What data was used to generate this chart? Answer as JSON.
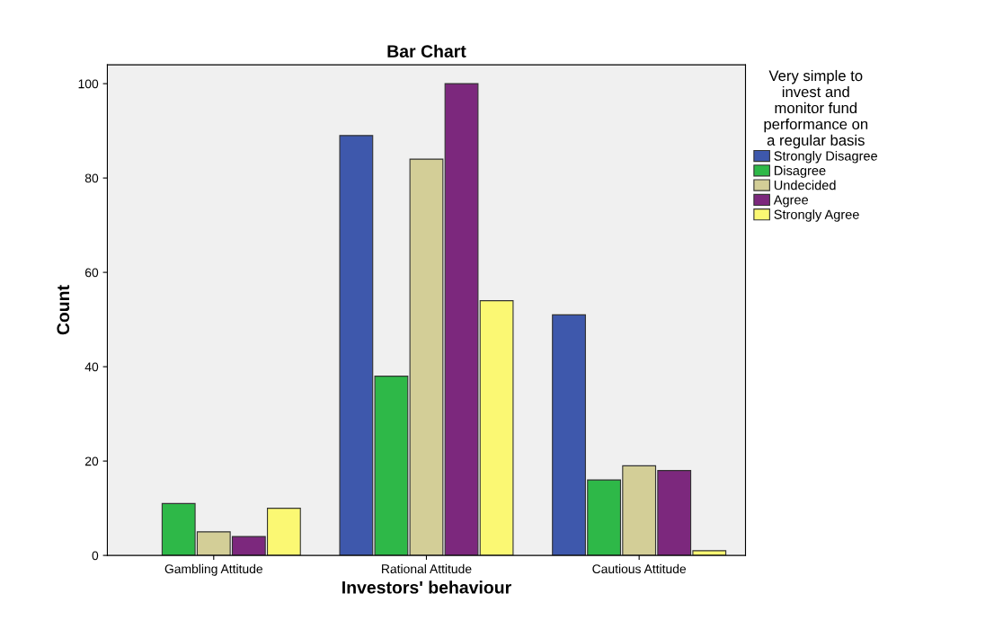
{
  "chart_data": {
    "type": "bar",
    "title": "Bar Chart",
    "xlabel": "Investors' behaviour",
    "ylabel": "Count",
    "categories": [
      "Gambling Attitude",
      "Rational Attitude",
      "Cautious Attitude"
    ],
    "series": [
      {
        "name": "Strongly Disagree",
        "color": "#3e58ac",
        "values": [
          0,
          89,
          51
        ]
      },
      {
        "name": "Disagree",
        "color": "#2eb848",
        "values": [
          11,
          38,
          16
        ]
      },
      {
        "name": "Undecided",
        "color": "#d3ce97",
        "values": [
          5,
          84,
          19
        ]
      },
      {
        "name": "Agree",
        "color": "#7c287d",
        "values": [
          4,
          100,
          18
        ]
      },
      {
        "name": "Strongly Agree",
        "color": "#fbf873",
        "values": [
          10,
          54,
          1
        ]
      }
    ],
    "legend_title": "Very simple to\ninvest and\nmonitor fund\nperformance on\na regular basis",
    "legend": "right",
    "grid": false,
    "ylim": [
      0,
      104
    ],
    "yticks": [
      0,
      20,
      40,
      60,
      80,
      100
    ]
  }
}
